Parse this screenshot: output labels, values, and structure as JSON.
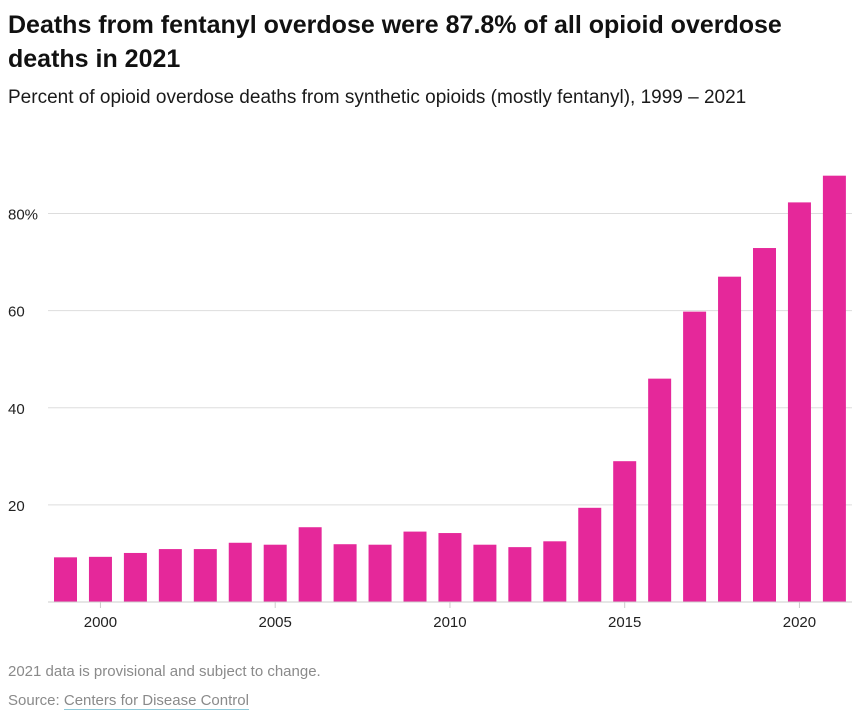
{
  "title": "Deaths from fentanyl overdose were 87.8% of all opioid overdose deaths in 2021",
  "subtitle": "Percent of opioid overdose deaths from synthetic opioids (mostly fentanyl), 1999 – 2021",
  "note": "2021 data is provisional and subject to change.",
  "source_prefix": "Source:",
  "source_link": "Centers for Disease Control",
  "colors": {
    "bar": "#e5289a",
    "grid": "#dddddd",
    "axis": "#cccccc",
    "tick_text": "#222222"
  },
  "chart_data": {
    "type": "bar",
    "title": "Deaths from fentanyl overdose were 87.8% of all opioid overdose deaths in 2021",
    "subtitle": "Percent of opioid overdose deaths from synthetic opioids (mostly fentanyl), 1999 – 2021",
    "x": [
      1999,
      2000,
      2001,
      2002,
      2003,
      2004,
      2005,
      2006,
      2007,
      2008,
      2009,
      2010,
      2011,
      2012,
      2013,
      2014,
      2015,
      2016,
      2017,
      2018,
      2019,
      2020,
      2021
    ],
    "values": [
      9.2,
      9.3,
      10.1,
      10.9,
      10.9,
      12.2,
      11.8,
      15.4,
      11.9,
      11.8,
      14.5,
      14.2,
      11.8,
      11.3,
      12.5,
      19.4,
      29.0,
      46.0,
      59.8,
      67.0,
      72.9,
      82.3,
      87.8
    ],
    "x_ticks": [
      "2000",
      "2005",
      "2010",
      "2015",
      "2020"
    ],
    "y_ticks": [
      "20",
      "40",
      "60",
      "80%"
    ],
    "y_tick_values": [
      20,
      40,
      60,
      80
    ],
    "ylim": [
      0,
      90
    ],
    "xlabel": "",
    "ylabel": "",
    "grid": true,
    "legend": "none"
  }
}
